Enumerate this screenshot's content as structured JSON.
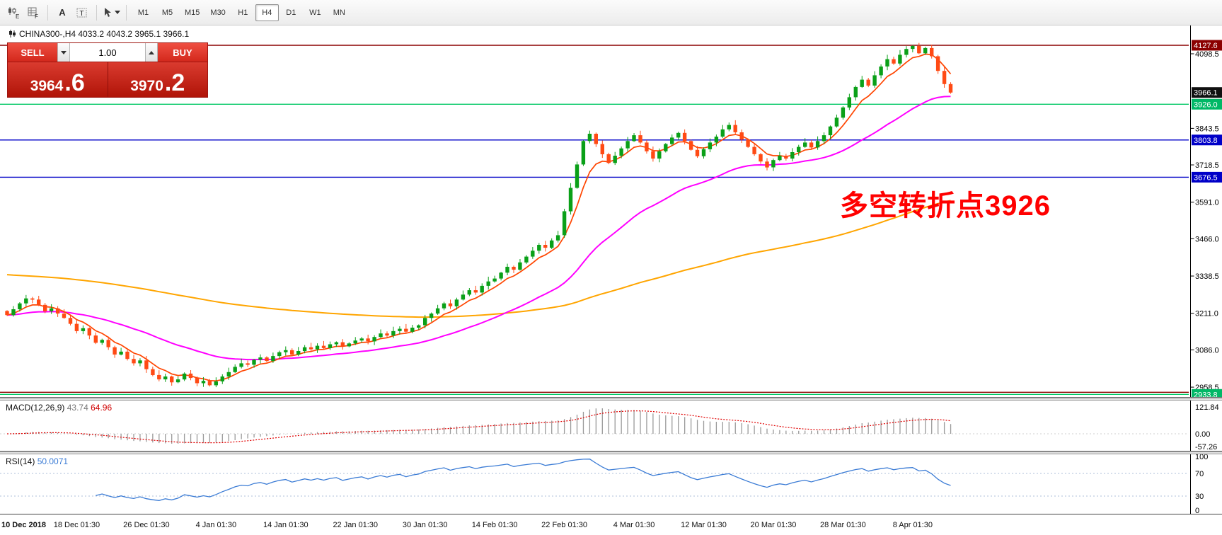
{
  "colors": {
    "candle_up": "#0aa018",
    "candle_down": "#ff4a14",
    "ma_fast": "#ff4500",
    "ma_mid": "#ff00ff",
    "ma_slow": "#ffa500",
    "macd_hist": "#9a9a9a",
    "macd_signal": "#e00000",
    "rsi_line": "#3a7bd5",
    "annotation": "#ff0000"
  },
  "toolbar": {
    "timeframes": [
      "M1",
      "M5",
      "M15",
      "M30",
      "H1",
      "H4",
      "D1",
      "W1",
      "MN"
    ],
    "active_timeframe": "H4",
    "text_tool_label": "A",
    "label_tool_letter": "T"
  },
  "symbol_bar": {
    "text": "CHINA300-,H4  4033.2 4043.2 3965.1 3966.1"
  },
  "trade_panel": {
    "sell_label": "SELL",
    "buy_label": "BUY",
    "volume": "1.00",
    "sell_price_main": "3964",
    "sell_price_pip": ".6",
    "buy_price_main": "3970",
    "buy_price_pip": ".2"
  },
  "annotation": {
    "text": "多空转折点3926"
  },
  "price_axis": {
    "ticks": [
      "4098.5",
      "3843.5",
      "3718.5",
      "3591.0",
      "3466.0",
      "3338.5",
      "3211.0",
      "3086.0",
      "2958.5"
    ],
    "labels": [
      {
        "text": "4127.6",
        "price": 4127.6,
        "bg": "#8b0000"
      },
      {
        "text": "3966.1",
        "price": 3966.1,
        "bg": "#101010"
      },
      {
        "text": "3926.0",
        "price": 3926.0,
        "bg": "#00b866"
      },
      {
        "text": "3803.8",
        "price": 3803.8,
        "bg": "#0000c8"
      },
      {
        "text": "3676.5",
        "price": 3676.5,
        "bg": "#0000c8"
      },
      {
        "text": "2933.8",
        "price": 2933.8,
        "bg": "#00b866"
      }
    ]
  },
  "hlines": [
    {
      "price": 4127.6,
      "color": "#8b0000"
    },
    {
      "price": 3926.0,
      "color": "#00c864"
    },
    {
      "price": 3803.8,
      "color": "#0000c8"
    },
    {
      "price": 3676.5,
      "color": "#0000c8"
    },
    {
      "price": 2941.0,
      "color": "#8b0000"
    },
    {
      "price": 2933.8,
      "color": "#00c864"
    }
  ],
  "macd": {
    "label": "MACD(12,26,9)",
    "value_main": "43.74",
    "value_signal": "64.96",
    "axis": [
      {
        "value": 121.84,
        "text": "121.84"
      },
      {
        "value": 0,
        "text": "0.00"
      },
      {
        "value": -57.26,
        "text": "-57.26"
      }
    ]
  },
  "rsi": {
    "label": "RSI(14)",
    "value": "50.0071",
    "levels": [
      70,
      30
    ],
    "axis": [
      {
        "value": 100,
        "text": "100"
      },
      {
        "value": 70,
        "text": "70"
      },
      {
        "value": 30,
        "text": "30"
      },
      {
        "value": 0,
        "text": "0"
      }
    ]
  },
  "time_axis": [
    "10 Dec 2018",
    "18 Dec 01:30",
    "26 Dec 01:30",
    "4 Jan 01:30",
    "14 Jan 01:30",
    "22 Jan 01:30",
    "30 Jan 01:30",
    "14 Feb 01:30",
    "22 Feb 01:30",
    "4 Mar 01:30",
    "12 Mar 01:30",
    "20 Mar 01:30",
    "28 Mar 01:30",
    "8 Apr 01:30"
  ],
  "chart_data": {
    "type": "candlestick",
    "symbol": "CHINA300-",
    "timeframe": "H4",
    "title": "CHINA300-,H4",
    "ohlc_current_bar": {
      "open": 4033.2,
      "high": 4043.2,
      "low": 3965.1,
      "close": 3966.1
    },
    "bid": 3964.6,
    "ask": 3970.2,
    "price_axis_range_visible": [
      2933.8,
      4127.6
    ],
    "horizontal_levels": [
      4127.6,
      3926.0,
      3803.8,
      3676.5,
      2933.8
    ],
    "closes": [
      3205,
      3225,
      3245,
      3262,
      3258,
      3240,
      3218,
      3228,
      3210,
      3195,
      3175,
      3150,
      3160,
      3135,
      3110,
      3120,
      3095,
      3070,
      3080,
      3055,
      3040,
      3050,
      3020,
      3000,
      2985,
      2995,
      2975,
      2985,
      3005,
      2990,
      2972,
      2980,
      2965,
      2978,
      2995,
      3010,
      3028,
      3040,
      3035,
      3052,
      3060,
      3048,
      3065,
      3078,
      3085,
      3070,
      3082,
      3095,
      3088,
      3100,
      3092,
      3105,
      3112,
      3098,
      3108,
      3118,
      3125,
      3115,
      3130,
      3142,
      3135,
      3150,
      3158,
      3148,
      3162,
      3170,
      3195,
      3210,
      3228,
      3245,
      3235,
      3258,
      3275,
      3290,
      3282,
      3305,
      3320,
      3330,
      3350,
      3370,
      3360,
      3385,
      3405,
      3425,
      3445,
      3435,
      3460,
      3478,
      3560,
      3640,
      3720,
      3800,
      3825,
      3790,
      3755,
      3725,
      3750,
      3775,
      3800,
      3820,
      3795,
      3765,
      3740,
      3765,
      3790,
      3812,
      3828,
      3800,
      3770,
      3748,
      3772,
      3795,
      3815,
      3840,
      3855,
      3830,
      3805,
      3780,
      3755,
      3730,
      3710,
      3735,
      3750,
      3740,
      3762,
      3780,
      3795,
      3778,
      3800,
      3820,
      3850,
      3880,
      3915,
      3950,
      3985,
      4010,
      3990,
      4025,
      4055,
      4080,
      4065,
      4095,
      4115,
      4125,
      4100,
      4118,
      4090,
      4040,
      3995,
      3966
    ],
    "indicators": {
      "macd": {
        "params": [
          12,
          26,
          9
        ],
        "main": 43.74,
        "signal": 64.96
      },
      "rsi": {
        "params": [
          14
        ],
        "value": 50.0071
      }
    }
  }
}
